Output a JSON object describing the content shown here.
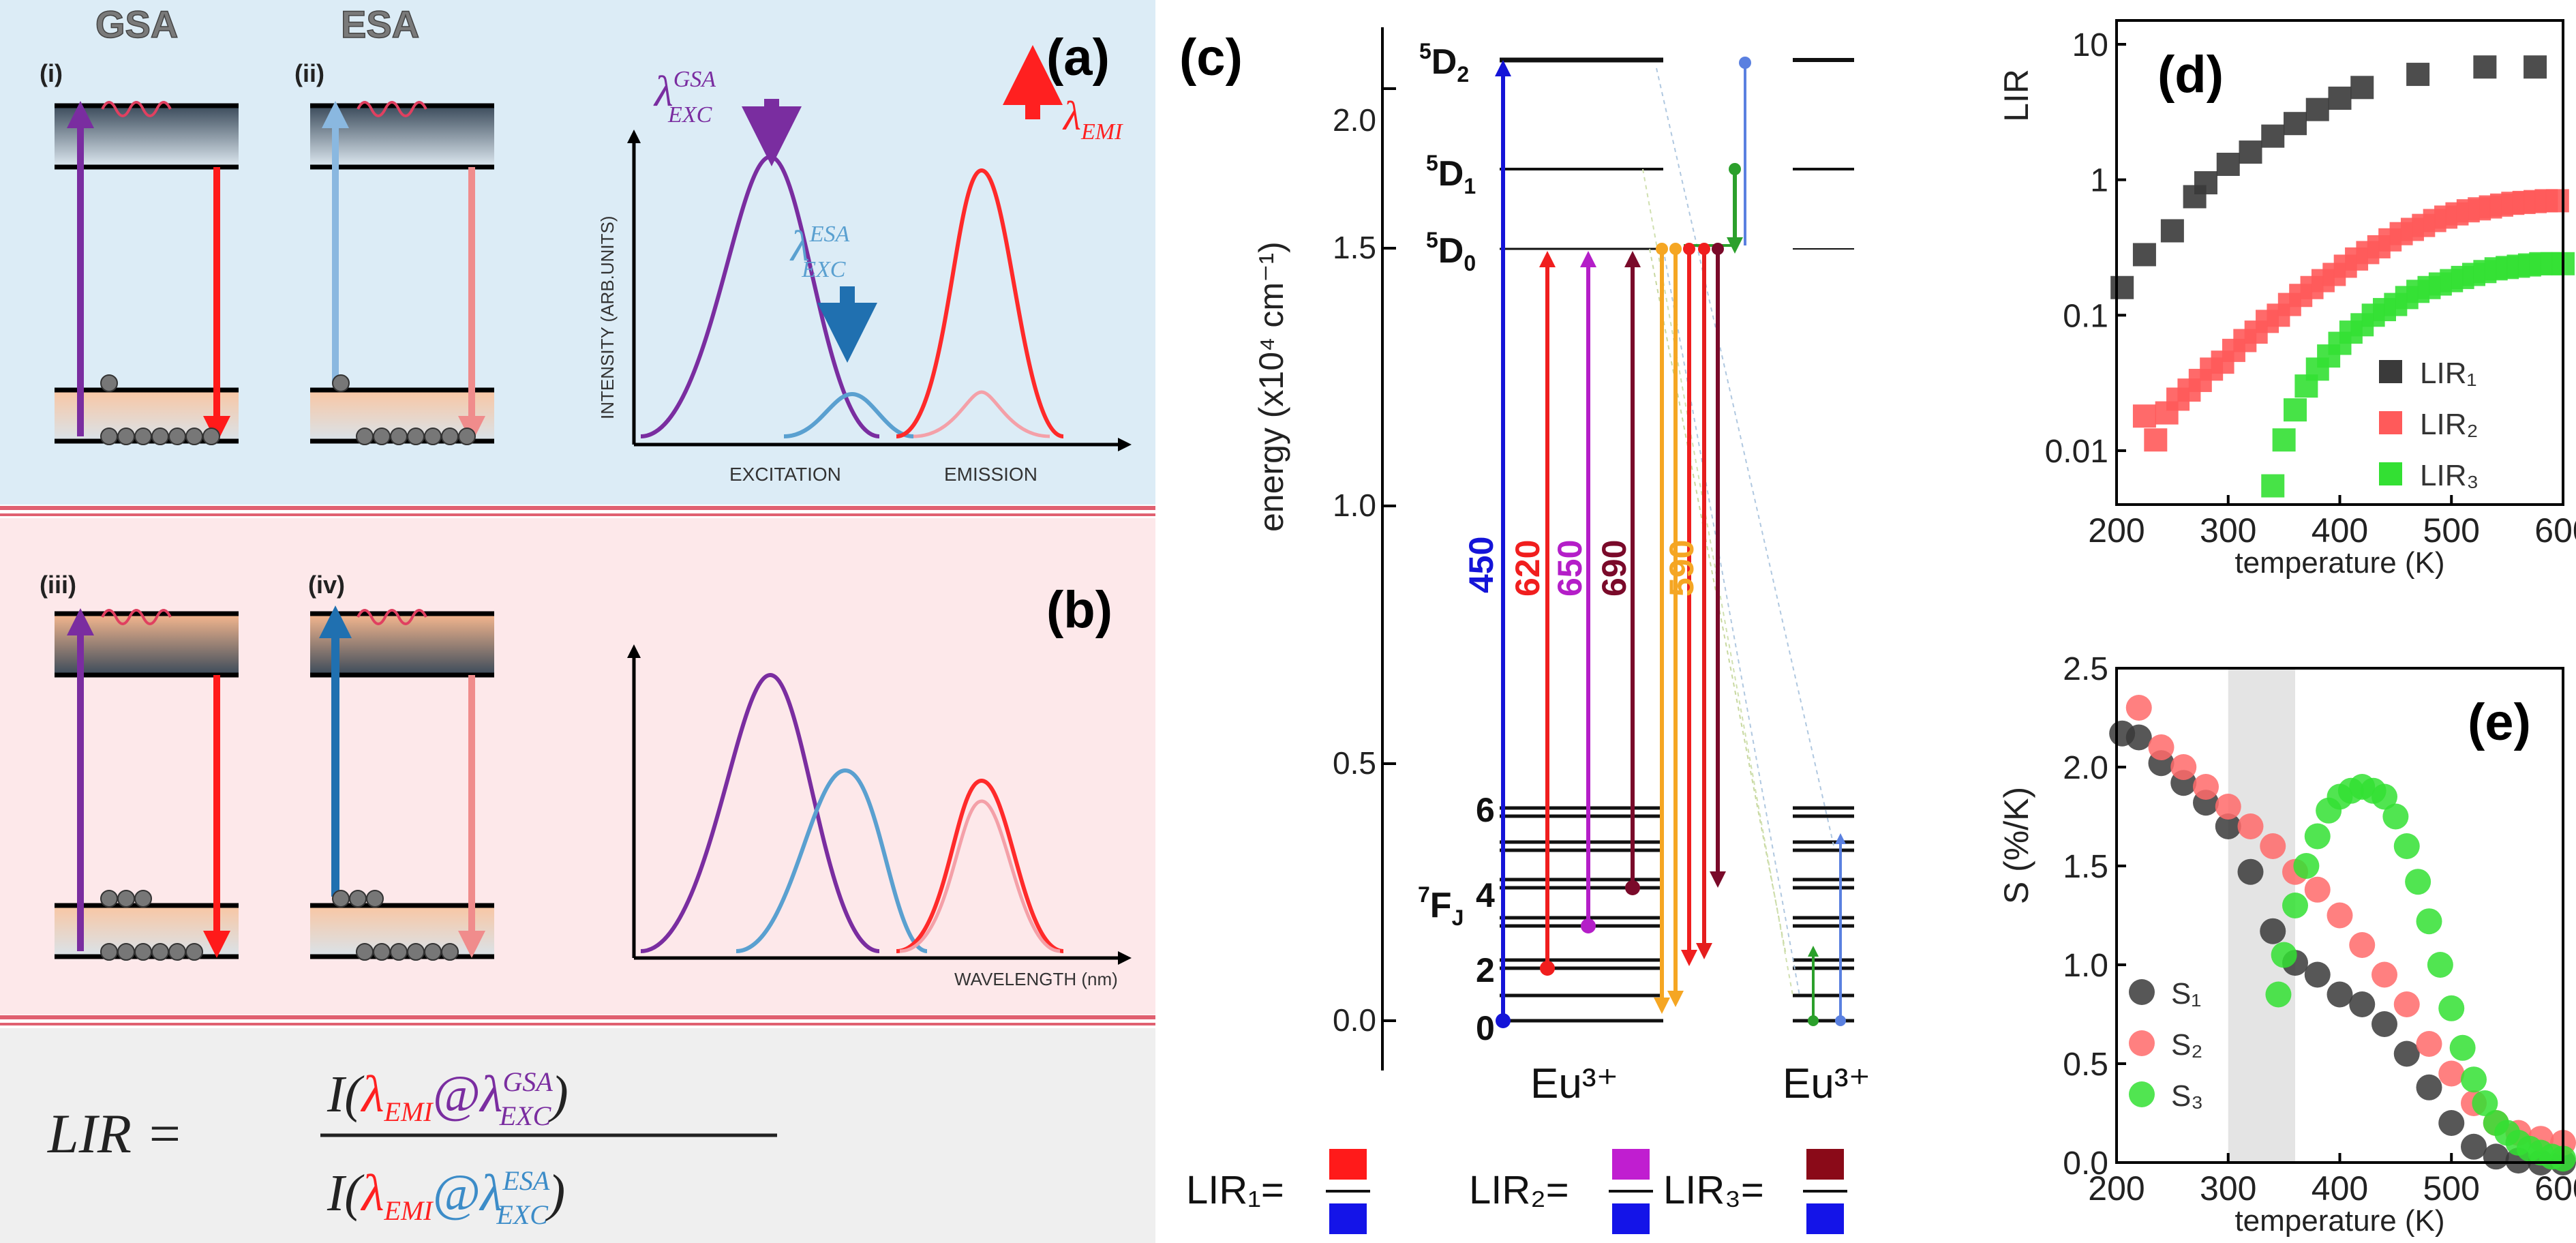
{
  "panelA": {
    "label": "(a)",
    "gsa": "GSA",
    "esa": "ESA",
    "i": "(i)",
    "ii": "(ii)",
    "ylabel": "INTENSITY (ARB.UNITS)",
    "excitation": "EXCITATION",
    "emission": "EMISSION",
    "lambda": "λ",
    "gsa_sup": "GSA",
    "esa_sup": "ESA",
    "exc_sub": "EXC",
    "emi_sub": "EMI"
  },
  "panelB": {
    "label": "(b)",
    "iii": "(iii)",
    "iv": "(iv)",
    "xlabel": "WAVELENGTH (nm)"
  },
  "formula": {
    "lhs": "LIR =",
    "I": "I(",
    "lam": "λ",
    "emi": "EMI",
    "at": "@",
    "exc": "EXC",
    "gsa": "GSA",
    "esa": "ESA",
    "close": ")"
  },
  "panelC": {
    "label": "(c)",
    "ylabel": "energy (x10⁴ cm⁻¹)",
    "yticks": [
      "0.0",
      "0.5",
      "1.0",
      "1.5",
      "2.0"
    ],
    "levels": {
      "d2": "5D2",
      "d1": "5D1",
      "d0": "5D0",
      "f": "7FJ"
    },
    "jlabels": [
      "0",
      "2",
      "4",
      "6"
    ],
    "wavelengths": [
      "450",
      "620",
      "650",
      "690",
      "590"
    ],
    "ion": "Eu³⁺",
    "lir1": "LIR₁=",
    "lir2": "LIR₂=",
    "lir3": "LIR₃=",
    "colors": {
      "blue": "#1414d8",
      "red": "#f01e1e",
      "magenta": "#b41ec8",
      "maroon": "#7a0a2a",
      "orange": "#f5a623",
      "green": "#2ca02c"
    }
  },
  "chart_data": [
    {
      "id": "d",
      "type": "scatter",
      "title": "(d)",
      "xlabel": "temperature (K)",
      "ylabel": "LIR",
      "yscale": "log",
      "xlim": [
        200,
        600
      ],
      "ylim": [
        0.004,
        15
      ],
      "xticks": [
        "200",
        "300",
        "400",
        "500",
        "600"
      ],
      "yticks": [
        "0.01",
        "0.1",
        "1",
        "10"
      ],
      "series": [
        {
          "name": "LIR₁",
          "color": "#3a3a3a",
          "x": [
            205,
            225,
            250,
            270,
            280,
            300,
            320,
            340,
            360,
            380,
            400,
            420,
            470,
            530,
            575
          ],
          "y": [
            0.16,
            0.28,
            0.42,
            0.75,
            0.95,
            1.3,
            1.6,
            2.1,
            2.6,
            3.3,
            4.0,
            4.8,
            6.0,
            6.8,
            6.8
          ]
        },
        {
          "name": "LIR₂",
          "color": "#ff5a5a",
          "x": [
            225,
            235,
            245,
            255,
            265,
            275,
            285,
            295,
            305,
            315,
            325,
            335,
            345,
            355,
            365,
            375,
            385,
            395,
            405,
            415,
            425,
            435,
            445,
            455,
            465,
            475,
            485,
            495,
            505,
            515,
            525,
            535,
            545,
            555,
            565,
            575,
            585,
            595
          ],
          "y": [
            0.018,
            0.012,
            0.019,
            0.024,
            0.028,
            0.033,
            0.04,
            0.045,
            0.055,
            0.065,
            0.075,
            0.09,
            0.1,
            0.12,
            0.14,
            0.16,
            0.18,
            0.2,
            0.23,
            0.26,
            0.29,
            0.32,
            0.36,
            0.4,
            0.43,
            0.46,
            0.5,
            0.53,
            0.56,
            0.59,
            0.61,
            0.63,
            0.65,
            0.67,
            0.68,
            0.69,
            0.7,
            0.7
          ]
        },
        {
          "name": "LIR₃",
          "color": "#33e033",
          "x": [
            340,
            350,
            360,
            370,
            380,
            390,
            400,
            410,
            420,
            430,
            440,
            450,
            460,
            470,
            480,
            490,
            500,
            510,
            520,
            530,
            540,
            550,
            560,
            570,
            580,
            590,
            600
          ],
          "y": [
            0.0055,
            0.012,
            0.02,
            0.03,
            0.04,
            0.05,
            0.062,
            0.075,
            0.085,
            0.1,
            0.11,
            0.12,
            0.135,
            0.15,
            0.16,
            0.17,
            0.18,
            0.19,
            0.2,
            0.21,
            0.22,
            0.225,
            0.23,
            0.235,
            0.24,
            0.24,
            0.24
          ]
        }
      ]
    },
    {
      "id": "e",
      "type": "scatter",
      "title": "(e)",
      "xlabel": "temperature (K)",
      "ylabel": "S (%/K)",
      "xlim": [
        200,
        600
      ],
      "ylim": [
        0,
        2.5
      ],
      "xticks": [
        "200",
        "300",
        "400",
        "500",
        "600"
      ],
      "yticks": [
        "0.0",
        "0.5",
        "1.0",
        "1.5",
        "2.0",
        "2.5"
      ],
      "shaded_x": [
        300,
        360
      ],
      "series": [
        {
          "name": "S₁",
          "color": "#3a3a3a",
          "x": [
            205,
            220,
            240,
            260,
            280,
            300,
            320,
            340,
            360,
            380,
            400,
            420,
            440,
            460,
            480,
            500,
            520,
            540,
            560,
            580,
            600
          ],
          "y": [
            2.17,
            2.15,
            2.02,
            1.92,
            1.82,
            1.7,
            1.47,
            1.17,
            1.01,
            0.95,
            0.85,
            0.8,
            0.7,
            0.55,
            0.38,
            0.2,
            0.08,
            0.03,
            0.01,
            0.0,
            0.0
          ]
        },
        {
          "name": "S₂",
          "color": "#ff6a6a",
          "x": [
            220,
            240,
            260,
            280,
            300,
            320,
            340,
            360,
            380,
            400,
            420,
            440,
            460,
            480,
            500,
            520,
            540,
            560,
            580,
            600
          ],
          "y": [
            2.3,
            2.1,
            2.0,
            1.9,
            1.8,
            1.7,
            1.6,
            1.47,
            1.38,
            1.25,
            1.1,
            0.95,
            0.8,
            0.6,
            0.45,
            0.3,
            0.2,
            0.15,
            0.12,
            0.1
          ]
        },
        {
          "name": "S₃",
          "color": "#33e033",
          "x": [
            345,
            350,
            360,
            370,
            380,
            390,
            400,
            410,
            420,
            430,
            440,
            450,
            460,
            470,
            480,
            490,
            500,
            510,
            520,
            530,
            540,
            550,
            560,
            570,
            580,
            590,
            600
          ],
          "y": [
            0.85,
            1.05,
            1.3,
            1.5,
            1.65,
            1.78,
            1.85,
            1.88,
            1.9,
            1.88,
            1.85,
            1.75,
            1.6,
            1.42,
            1.22,
            1.0,
            0.78,
            0.58,
            0.42,
            0.3,
            0.2,
            0.15,
            0.1,
            0.07,
            0.05,
            0.03,
            0.02
          ]
        }
      ]
    }
  ]
}
